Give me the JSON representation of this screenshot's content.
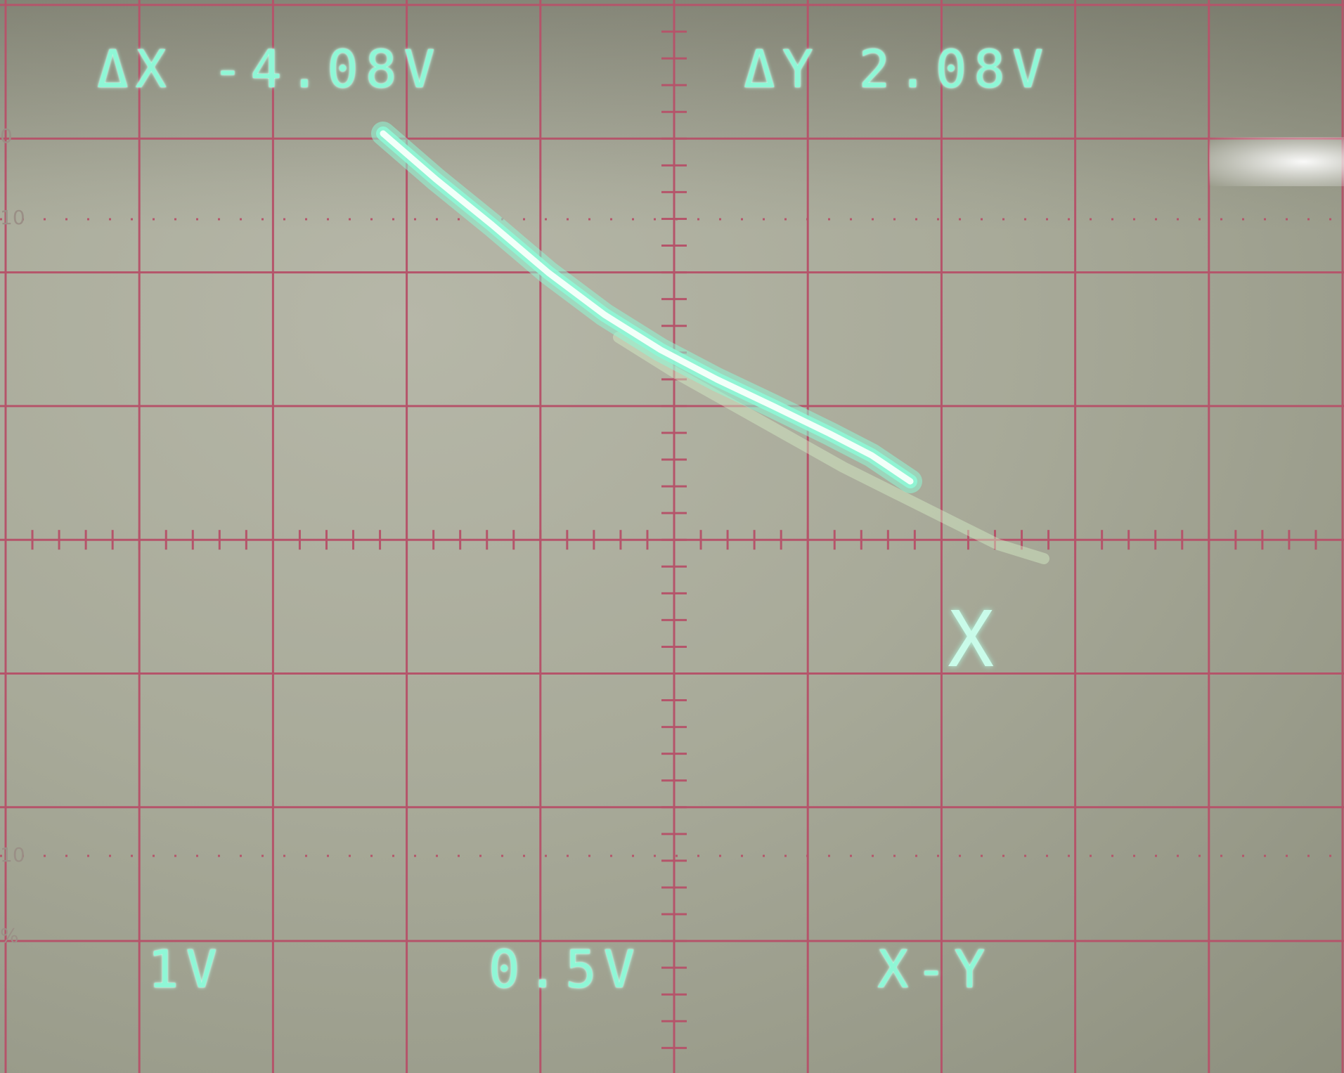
{
  "oscilloscope": {
    "readouts": {
      "delta_x": "ΔX -4.08V",
      "delta_y": "ΔY 2.08V",
      "ch1_scale": "1V",
      "ch2_scale": "0.5V",
      "mode": "X-Y"
    },
    "cursor_marker": "X",
    "edge_labels": [
      "0",
      "10",
      "10",
      "%"
    ],
    "colors": {
      "trace": "#8ff7d6",
      "trace_core": "#f2fff9",
      "graticule": "#b5546a",
      "screen": "#a8aa99"
    },
    "graticule": {
      "divisions_x": 10,
      "divisions_y": 8,
      "minor_ticks_per_division": 5
    }
  }
}
